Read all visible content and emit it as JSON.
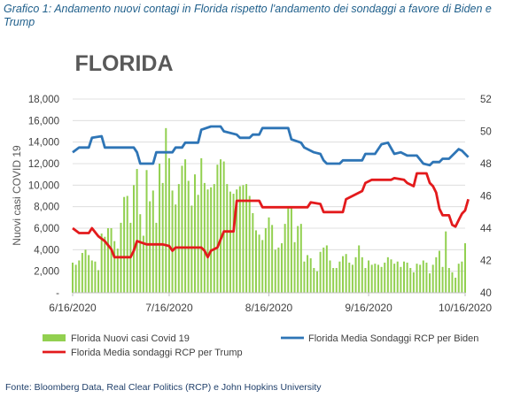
{
  "caption": "Grafico 1: Andamento nuovi contagi in Florida rispetto l'andamento dei sondaggi a favore di Biden e Trump",
  "source": "Fonte: Bloomberg Data, Real Clear Politics (RCP) e John Hopkins University",
  "colors": {
    "bars": "#92d050",
    "biden": "#2e75b6",
    "trump": "#e31a1c",
    "axis": "#595959",
    "grid": "#d9d9d9"
  },
  "chart_data": {
    "type": "bar+line",
    "title": "FLORIDA",
    "ylabel": "Nuovi casi COVID 19",
    "y_left": {
      "min": 0,
      "max": 18000,
      "ticks": [
        0,
        2000,
        4000,
        6000,
        8000,
        10000,
        12000,
        14000,
        16000,
        18000
      ],
      "tick_labels": [
        "-",
        "2,000",
        "4,000",
        "6,000",
        "8,000",
        "10,000",
        "12,000",
        "14,000",
        "16,000",
        "18,000"
      ]
    },
    "y_right": {
      "min": 40,
      "max": 52,
      "ticks": [
        40,
        42,
        44,
        46,
        48,
        50,
        52
      ],
      "tick_labels": [
        "40",
        "42",
        "44",
        "46",
        "48",
        "50",
        "52"
      ]
    },
    "x_range": [
      "2020-06-16",
      "2020-10-16"
    ],
    "x_ticks": [
      "2020-06-16",
      "2020-07-16",
      "2020-08-16",
      "2020-09-16",
      "2020-10-16"
    ],
    "x_tick_labels": [
      "6/16/2020",
      "7/16/2020",
      "8/16/2020",
      "9/16/2020",
      "10/16/2020"
    ],
    "legend": {
      "position": "bottom",
      "entries": [
        "Florida Nuovi casi Covid 19",
        "Florida Media Sondaggi RCP per Biden",
        "Florida Media sondaggi RCP per Trump"
      ]
    },
    "bars": {
      "name": "Florida Nuovi casi Covid 19",
      "start": "2020-06-16",
      "values": [
        2800,
        2600,
        3000,
        3700,
        4000,
        3500,
        3000,
        2900,
        2100,
        5500,
        5200,
        6000,
        6000,
        4800,
        4100,
        6500,
        8900,
        9000,
        6500,
        10000,
        11500,
        7300,
        5300,
        11400,
        8500,
        9500,
        6500,
        12000,
        10200,
        15300,
        12500,
        9500,
        8200,
        10100,
        11800,
        12400,
        10400,
        8100,
        11000,
        9100,
        12500,
        10200,
        9600,
        9800,
        10100,
        11900,
        12400,
        12200,
        10100,
        9400,
        9200,
        9600,
        9900,
        10000,
        10100,
        9000,
        7400,
        5800,
        5400,
        4900,
        6000,
        7000,
        6300,
        4000,
        4200,
        4600,
        6400,
        8000,
        7900,
        4700,
        6200,
        6400,
        2900,
        3500,
        3200,
        2300,
        2000,
        3800,
        4200,
        4400,
        3000,
        2300,
        2300,
        2900,
        3400,
        3600,
        2800,
        2600,
        3300,
        4400,
        3300,
        2300,
        3000,
        2600,
        2700,
        2600,
        2400,
        2800,
        3300,
        3100,
        2700,
        2900,
        2400,
        2900,
        2800,
        2300,
        1900,
        2700,
        2600,
        3000,
        2800,
        1800,
        2600,
        3300,
        3900,
        2400,
        5700,
        2300,
        1900,
        1400,
        2700,
        2900,
        4600
      ]
    },
    "series": [
      {
        "name": "Florida Media Sondaggi RCP per Biden",
        "points": [
          [
            "2020-06-16",
            48.7
          ],
          [
            "2020-06-18",
            49.0
          ],
          [
            "2020-06-21",
            49.0
          ],
          [
            "2020-06-22",
            49.6
          ],
          [
            "2020-06-25",
            49.7
          ],
          [
            "2020-06-26",
            49.0
          ],
          [
            "2020-07-05",
            49.0
          ],
          [
            "2020-07-06",
            48.7
          ],
          [
            "2020-07-07",
            48.0
          ],
          [
            "2020-07-11",
            48.0
          ],
          [
            "2020-07-12",
            48.7
          ],
          [
            "2020-07-17",
            48.7
          ],
          [
            "2020-07-18",
            49.0
          ],
          [
            "2020-07-20",
            49.0
          ],
          [
            "2020-07-21",
            49.3
          ],
          [
            "2020-07-25",
            49.3
          ],
          [
            "2020-07-26",
            50.1
          ],
          [
            "2020-07-29",
            50.3
          ],
          [
            "2020-08-01",
            50.3
          ],
          [
            "2020-08-02",
            50.0
          ],
          [
            "2020-08-06",
            49.8
          ],
          [
            "2020-08-07",
            49.6
          ],
          [
            "2020-08-10",
            49.6
          ],
          [
            "2020-08-11",
            49.8
          ],
          [
            "2020-08-13",
            49.8
          ],
          [
            "2020-08-14",
            50.2
          ],
          [
            "2020-08-22",
            50.2
          ],
          [
            "2020-08-23",
            49.5
          ],
          [
            "2020-08-26",
            49.3
          ],
          [
            "2020-08-27",
            49.0
          ],
          [
            "2020-08-30",
            48.7
          ],
          [
            "2020-09-01",
            48.6
          ],
          [
            "2020-09-02",
            48.2
          ],
          [
            "2020-09-03",
            48.0
          ],
          [
            "2020-09-07",
            48.0
          ],
          [
            "2020-09-08",
            48.2
          ],
          [
            "2020-09-14",
            48.2
          ],
          [
            "2020-09-15",
            48.6
          ],
          [
            "2020-09-18",
            48.6
          ],
          [
            "2020-09-20",
            49.2
          ],
          [
            "2020-09-22",
            49.3
          ],
          [
            "2020-09-24",
            48.6
          ],
          [
            "2020-09-26",
            48.7
          ],
          [
            "2020-09-28",
            48.5
          ],
          [
            "2020-10-01",
            48.5
          ],
          [
            "2020-10-03",
            48.0
          ],
          [
            "2020-10-05",
            47.9
          ],
          [
            "2020-10-06",
            48.1
          ],
          [
            "2020-10-08",
            48.1
          ],
          [
            "2020-10-09",
            48.3
          ],
          [
            "2020-10-11",
            48.3
          ],
          [
            "2020-10-13",
            48.7
          ],
          [
            "2020-10-14",
            48.9
          ],
          [
            "2020-10-15",
            48.8
          ],
          [
            "2020-10-17",
            48.4
          ]
        ]
      },
      {
        "name": "Florida Media sondaggi RCP per Trump",
        "points": [
          [
            "2020-06-16",
            44.0
          ],
          [
            "2020-06-18",
            43.7
          ],
          [
            "2020-06-21",
            43.7
          ],
          [
            "2020-06-22",
            44.0
          ],
          [
            "2020-06-24",
            43.5
          ],
          [
            "2020-06-26",
            43.2
          ],
          [
            "2020-06-28",
            42.7
          ],
          [
            "2020-06-29",
            42.2
          ],
          [
            "2020-07-04",
            42.2
          ],
          [
            "2020-07-05",
            42.6
          ],
          [
            "2020-07-06",
            43.2
          ],
          [
            "2020-07-09",
            43.0
          ],
          [
            "2020-07-14",
            43.0
          ],
          [
            "2020-07-16",
            42.9
          ],
          [
            "2020-07-17",
            42.6
          ],
          [
            "2020-07-18",
            42.8
          ],
          [
            "2020-07-26",
            42.8
          ],
          [
            "2020-07-27",
            42.6
          ],
          [
            "2020-07-28",
            42.2
          ],
          [
            "2020-07-29",
            42.6
          ],
          [
            "2020-07-31",
            42.8
          ],
          [
            "2020-08-01",
            43.3
          ],
          [
            "2020-08-02",
            43.8
          ],
          [
            "2020-08-05",
            43.8
          ],
          [
            "2020-08-06",
            45.7
          ],
          [
            "2020-08-13",
            45.7
          ],
          [
            "2020-08-14",
            45.3
          ],
          [
            "2020-08-28",
            45.3
          ],
          [
            "2020-08-29",
            45.6
          ],
          [
            "2020-09-01",
            45.5
          ],
          [
            "2020-09-02",
            45.0
          ],
          [
            "2020-09-08",
            45.0
          ],
          [
            "2020-09-09",
            45.8
          ],
          [
            "2020-09-14",
            46.3
          ],
          [
            "2020-09-15",
            46.8
          ],
          [
            "2020-09-17",
            47.0
          ],
          [
            "2020-09-23",
            47.0
          ],
          [
            "2020-09-24",
            47.1
          ],
          [
            "2020-09-27",
            47.0
          ],
          [
            "2020-09-28",
            46.8
          ],
          [
            "2020-09-30",
            46.6
          ],
          [
            "2020-10-01",
            47.4
          ],
          [
            "2020-10-04",
            47.4
          ],
          [
            "2020-10-05",
            46.8
          ],
          [
            "2020-10-06",
            46.6
          ],
          [
            "2020-10-07",
            46.2
          ],
          [
            "2020-10-08",
            45.2
          ],
          [
            "2020-10-09",
            44.8
          ],
          [
            "2020-10-11",
            44.8
          ],
          [
            "2020-10-12",
            44.2
          ],
          [
            "2020-10-13",
            44.1
          ],
          [
            "2020-10-14",
            44.5
          ],
          [
            "2020-10-15",
            44.9
          ],
          [
            "2020-10-16",
            45.1
          ],
          [
            "2020-10-17",
            45.8
          ]
        ]
      }
    ]
  }
}
